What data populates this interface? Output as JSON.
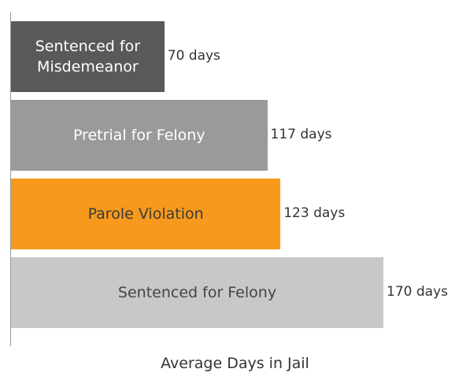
{
  "chart_data": {
    "type": "bar",
    "orientation": "horizontal",
    "categories": [
      "Sentenced for Misdemeanor",
      "Pretrial for Felony",
      "Parole Violation",
      "Sentenced for Felony"
    ],
    "values": [
      70,
      117,
      123,
      170
    ],
    "value_labels": [
      "70 days",
      "117 days",
      "123 days",
      "170 days"
    ],
    "colors": [
      "#58595b",
      "#9a9a9a",
      "#f7991c",
      "#c8c8c8"
    ],
    "text_colors": [
      "#ffffff",
      "#ffffff",
      "#3a3a3a",
      "#444444"
    ],
    "xlim": [
      0,
      170
    ],
    "x_label": "Average Days in Jail"
  }
}
